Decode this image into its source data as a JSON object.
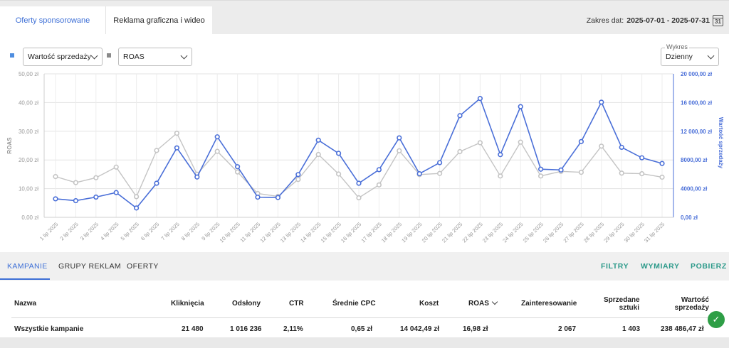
{
  "tabs": [
    {
      "label": "Oferty sponsorowane",
      "active": true
    },
    {
      "label": "Reklama graficzna i wideo",
      "active": false
    }
  ],
  "date_range": {
    "label": "Zakres dat:",
    "value": "2025-07-01 - 2025-07-31",
    "calendar_day": "31"
  },
  "controls": {
    "metric1": {
      "value": "Wartość sprzedaży",
      "color": "#4f8ee0"
    },
    "metric2": {
      "value": "ROAS",
      "color": "#8a8a8a"
    },
    "chart_group_label": "Wykres",
    "chart_group_value": "Dzienny"
  },
  "chart_data": {
    "type": "line",
    "x": [
      "1 lip 2025",
      "2 lip 2025",
      "3 lip 2025",
      "4 lip 2025",
      "5 lip 2025",
      "6 lip 2025",
      "7 lip 2025",
      "8 lip 2025",
      "9 lip 2025",
      "10 lip 2025",
      "11 lip 2025",
      "12 lip 2025",
      "13 lip 2025",
      "14 lip 2025",
      "15 lip 2025",
      "16 lip 2025",
      "17 lip 2025",
      "18 lip 2025",
      "19 lip 2025",
      "20 lip 2025",
      "21 lip 2025",
      "22 lip 2025",
      "23 lip 2025",
      "24 lip 2025",
      "25 lip 2025",
      "26 lip 2025",
      "27 lip 2025",
      "28 lip 2025",
      "29 lip 2025",
      "30 lip 2025",
      "31 lip 2025"
    ],
    "series": [
      {
        "name": "ROAS",
        "axis": "left",
        "color": "#c4c4c4",
        "values": [
          14.2,
          12.1,
          13.8,
          17.5,
          7.2,
          23.3,
          29.3,
          15.0,
          23.0,
          15.8,
          8.3,
          7.3,
          13.2,
          21.9,
          15.1,
          6.8,
          11.3,
          23.2,
          14.9,
          15.3,
          22.9,
          26.0,
          14.4,
          26.2,
          14.4,
          16.0,
          15.7,
          24.8,
          15.4,
          15.2,
          14.0
        ]
      },
      {
        "name": "Wartość sprzedaży",
        "axis": "right",
        "color": "#4a6fd8",
        "values": [
          2580,
          2320,
          2820,
          3450,
          1300,
          4750,
          9680,
          5620,
          11220,
          7060,
          2810,
          2760,
          5960,
          10760,
          8920,
          4750,
          6640,
          11080,
          6080,
          7620,
          14170,
          16570,
          8740,
          15430,
          6710,
          6600,
          10560,
          16050,
          9760,
          8300,
          7510
        ]
      }
    ],
    "ylabel_left": "ROAS",
    "ylabel_right": "Wartość sprzedaży",
    "y_left_ticks": [
      "0,00 zł",
      "10,00 zł",
      "20,00 zł",
      "30,00 zł",
      "40,00 zł",
      "50,00 zł"
    ],
    "y_right_ticks": [
      "0,00 zł",
      "4000,00 zł",
      "8000,00 zł",
      "12 000,00 zł",
      "16 000,00 zł",
      "20 000,00 zł"
    ],
    "ylim_left": [
      0,
      50
    ],
    "ylim_right": [
      0,
      20000
    ],
    "grid": true
  },
  "bottom_tabs": [
    {
      "label": "KAMPANIE",
      "active": true
    },
    {
      "label": "GRUPY REKLAM",
      "active": false
    },
    {
      "label": "OFERTY",
      "active": false
    }
  ],
  "actions": [
    "FILTRY",
    "WYMIARY",
    "POBIERZ"
  ],
  "table": {
    "headers": {
      "name": "Nazwa",
      "clicks": "Kliknięcia",
      "impressions": "Odsłony",
      "ctr": "CTR",
      "cpc": "Średnie CPC",
      "cost": "Koszt",
      "roas": "ROAS",
      "interest": "Zainteresowanie",
      "sold_1": "Sprzedane",
      "sold_2": "sztuki",
      "value_1": "Wartość",
      "value_2": "sprzedaży"
    },
    "rows": [
      {
        "name": "Wszystkie kampanie",
        "clicks": "21 480",
        "impressions": "1 016 236",
        "ctr": "2,11%",
        "cpc": "0,65 zł",
        "cost": "14 042,49 zł",
        "roas": "16,98 zł",
        "interest": "2 067",
        "sold": "1 403",
        "value": "238 486,47 zł"
      }
    ]
  }
}
